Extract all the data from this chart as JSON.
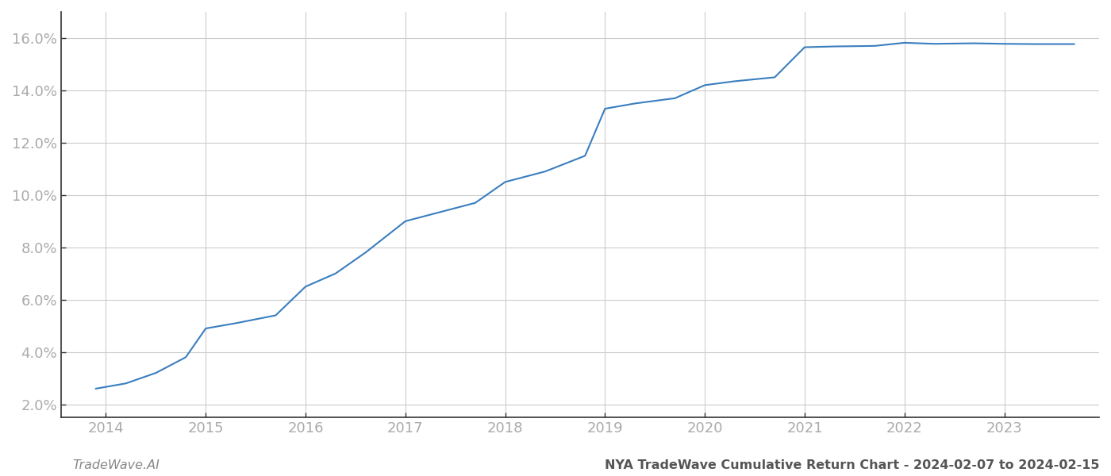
{
  "x_years": [
    2013.9,
    2014.2,
    2014.5,
    2014.8,
    2015.0,
    2015.3,
    2015.7,
    2016.0,
    2016.3,
    2016.6,
    2017.0,
    2017.3,
    2017.7,
    2018.0,
    2018.4,
    2018.8,
    2019.0,
    2019.3,
    2019.7,
    2020.0,
    2020.3,
    2020.7,
    2021.0,
    2021.3,
    2021.7,
    2022.0,
    2022.3,
    2022.7,
    2023.0,
    2023.3,
    2023.7
  ],
  "y_values": [
    2.6,
    2.8,
    3.2,
    3.8,
    4.9,
    5.1,
    5.4,
    6.5,
    7.0,
    7.8,
    9.0,
    9.3,
    9.7,
    10.5,
    10.9,
    11.5,
    13.3,
    13.5,
    13.7,
    14.2,
    14.35,
    14.5,
    15.65,
    15.68,
    15.7,
    15.82,
    15.78,
    15.8,
    15.78,
    15.77,
    15.77
  ],
  "line_color": "#3a7ebf",
  "line_width": 1.5,
  "background_color": "#ffffff",
  "grid_color": "#cccccc",
  "ylim": [
    1.5,
    17.0
  ],
  "yticks": [
    2.0,
    4.0,
    6.0,
    8.0,
    10.0,
    12.0,
    14.0,
    16.0
  ],
  "xlim": [
    2013.55,
    2023.95
  ],
  "xticks": [
    2014,
    2015,
    2016,
    2017,
    2018,
    2019,
    2020,
    2021,
    2022,
    2023
  ],
  "label_bottom_left": "TradeWave.AI",
  "label_bottom_right": "NYA TradeWave Cumulative Return Chart - 2024-02-07 to 2024-02-15",
  "label_color_left": "#888888",
  "label_color_right": "#555555",
  "label_fontsize": 11.5,
  "tick_label_color": "#aaaaaa",
  "tick_fontsize": 13,
  "spine_color": "#333333"
}
